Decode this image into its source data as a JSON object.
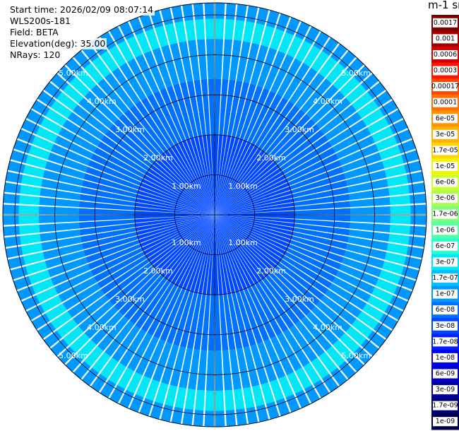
{
  "info": {
    "start_time": "Start time: 2026/02/09 08:07:14",
    "instrument": "WLS200s-181",
    "field": "Field: BETA",
    "elevation": "Elevation(deg): 35.00",
    "nrays": "NRays: 120"
  },
  "colorbar": {
    "title": "m-1 sr-1",
    "labels": [
      "0.0017",
      "0.001",
      "0.0006",
      "0.0003",
      "0.00017",
      "0.0001",
      "6e-05",
      "3e-05",
      "1.7e-05",
      "1e-05",
      "6e-06",
      "3e-06",
      "1.7e-06",
      "1e-06",
      "6e-07",
      "3e-07",
      "1.7e-07",
      "1e-07",
      "6e-08",
      "3e-08",
      "1.7e-08",
      "1e-08",
      "6e-09",
      "3e-09",
      "1.7e-09",
      "1e-09"
    ],
    "colors": [
      "#7a0000",
      "#a40000",
      "#d40000",
      "#ff1500",
      "#ff4800",
      "#ff7000",
      "#ff9000",
      "#ffb000",
      "#ffd500",
      "#f2f500",
      "#cfff2a",
      "#a8ff50",
      "#7cff7a",
      "#52ffa4",
      "#2affcf",
      "#00e7f5",
      "#00c0ff",
      "#0098ff",
      "#0070ff",
      "#0048ff",
      "#0020ff",
      "#0000f0",
      "#0000c8",
      "#00009e",
      "#000074",
      "#00004a"
    ]
  },
  "chart_data": {
    "type": "heatmap",
    "projection": "polar (PPI scan)",
    "field": "BETA",
    "units": "m-1 sr-1",
    "scale": "log",
    "nrays": 120,
    "elevation_deg": 35.0,
    "range_ring_labels": [
      "1.00km",
      "2.00km",
      "3.00km",
      "4.00km",
      "5.00km"
    ],
    "range_rings_km": [
      1,
      2,
      3,
      4,
      5
    ],
    "max_range_km": 5.3,
    "bands": [
      {
        "from_km": 0.0,
        "to_km": 2.0,
        "level": "3e-08"
      },
      {
        "from_km": 2.0,
        "to_km": 3.4,
        "level": "6e-08"
      },
      {
        "from_km": 3.4,
        "to_km": 4.4,
        "level": "1e-07"
      },
      {
        "from_km": 4.4,
        "to_km": 4.9,
        "level": "3e-07"
      },
      {
        "from_km": 4.9,
        "to_km": 5.3,
        "level": "1e-07"
      }
    ]
  }
}
